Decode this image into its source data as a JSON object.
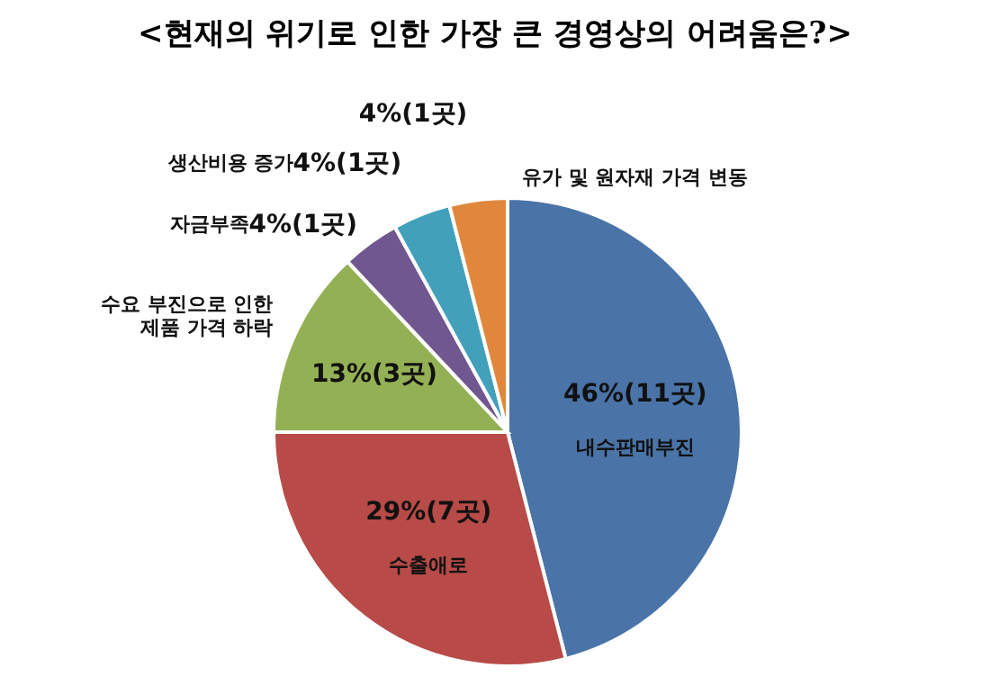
{
  "chart_data": {
    "type": "pie",
    "title": "<현재의 위기로 인한 가장 큰 경영상의 어려움은?>",
    "categories": [
      "내수판매부진",
      "수출애로",
      "수요 부진으로 인한\n제품 가격 하락",
      "자금부족",
      "생산비용 증가",
      "유가 및 원자재 가격 변동"
    ],
    "values": [
      46,
      29,
      13,
      4,
      4,
      4
    ],
    "value_labels": [
      "46%(11곳)",
      "29%(7곳)",
      "13%(3곳)",
      "4%(1곳)",
      "4%(1곳)",
      "4%(1곳)"
    ],
    "colors": [
      "#4a74a8",
      "#b84a47",
      "#94b055",
      "#71578f",
      "#42a0bb",
      "#e0873b"
    ]
  }
}
